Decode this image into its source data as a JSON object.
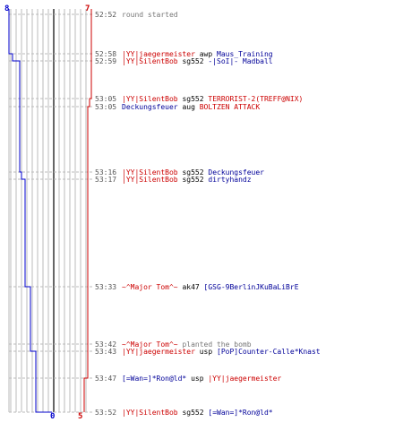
{
  "scores": {
    "blue_top": "8",
    "red_top": "7",
    "blue_bottom": "0",
    "red_bottom": "5"
  },
  "colors": {
    "blue_team": "#0000cc",
    "red_team": "#cc0000",
    "grid": "#bbbbbb",
    "event_line": "#bbbbbb"
  },
  "events": [
    {
      "time": "52:52",
      "type": "round",
      "text": "round started"
    },
    {
      "time": "52:58",
      "type": "kill",
      "killer": "|YY|jaegermeister",
      "killer_team": "red",
      "weapon": "awp",
      "victim": "Maus_Training",
      "victim_team": "blue"
    },
    {
      "time": "52:59",
      "type": "kill",
      "killer": "|YY|SilentBob",
      "killer_team": "red",
      "weapon": "sg552",
      "victim": "-|SoI|- Madball",
      "victim_team": "blue"
    },
    {
      "time": "53:05",
      "type": "kill",
      "killer": "|YY|SilentBob",
      "killer_team": "red",
      "weapon": "sg552",
      "victim": "TERRORIST-2(TREFF@NIX)",
      "victim_team": "red"
    },
    {
      "time": "53:05",
      "type": "kill",
      "killer": "Deckungsfeuer",
      "killer_team": "blue",
      "weapon": "aug",
      "victim": "BOLTZEN ATTACK",
      "victim_team": "red"
    },
    {
      "time": "53:16",
      "type": "kill",
      "killer": "|YY|SilentBob",
      "killer_team": "red",
      "weapon": "sg552",
      "victim": "Deckungsfeuer",
      "victim_team": "blue"
    },
    {
      "time": "53:17",
      "type": "kill",
      "killer": "|YY|SilentBob",
      "killer_team": "red",
      "weapon": "sg552",
      "victim": "dirtyhandz",
      "victim_team": "blue"
    },
    {
      "time": "53:33",
      "type": "kill",
      "killer": "~^Major Tom^~",
      "killer_team": "red",
      "weapon": "ak47",
      "victim": "[GSG-9BerlinJKuBaLiBrE",
      "victim_team": "blue"
    },
    {
      "time": "53:42",
      "type": "bomb",
      "player": "~^Major Tom^~",
      "player_team": "red",
      "text": "planted the bomb"
    },
    {
      "time": "53:43",
      "type": "kill",
      "killer": "|YY|jaegermeister",
      "killer_team": "red",
      "weapon": "usp",
      "victim": "[PoP]Counter-Calle*Knast",
      "victim_team": "blue"
    },
    {
      "time": "53:47",
      "type": "kill",
      "killer": "[=Wan=]*Ron@ld*",
      "killer_team": "blue",
      "weapon": "usp",
      "victim": "|YY|jaegermeister",
      "victim_team": "red"
    },
    {
      "time": "53:52",
      "type": "kill",
      "killer": "|YY|SilentBob",
      "killer_team": "red",
      "weapon": "sg552",
      "victim": "[=Wan=]*Ron@ld*",
      "victim_team": "blue"
    }
  ]
}
